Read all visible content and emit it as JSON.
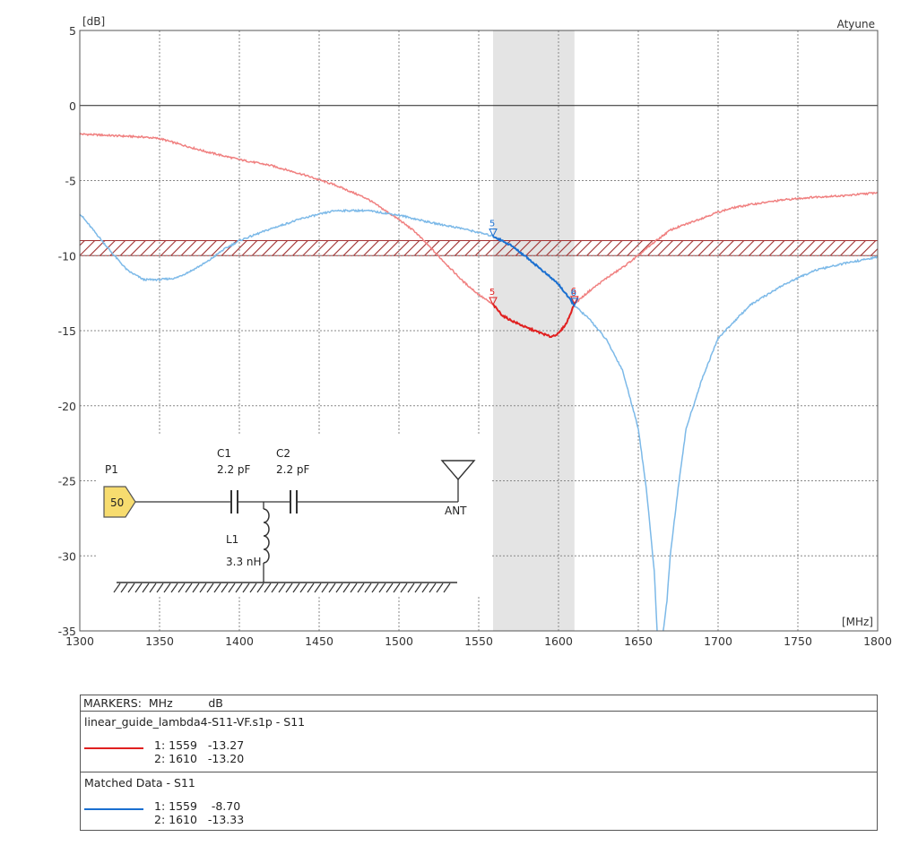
{
  "chart_data": {
    "type": "line",
    "title": "",
    "brand_label": "Atyune",
    "xlabel": "[MHz]",
    "ylabel": "[dB]",
    "xlim": [
      1300,
      1800
    ],
    "ylim": [
      -35,
      5
    ],
    "x_ticks": [
      1300,
      1350,
      1400,
      1450,
      1500,
      1550,
      1600,
      1650,
      1700,
      1750,
      1800
    ],
    "y_ticks": [
      5,
      0,
      -5,
      -10,
      -15,
      -20,
      -25,
      -30,
      -35
    ],
    "grid": true,
    "highlight_band_mhz": [
      1559,
      1610
    ],
    "spec_band_db": [
      -10,
      -9
    ],
    "series": [
      {
        "name": "linear_guide_lambda4-S11-VF.s1p - S11",
        "color": "#f08080",
        "highlight_color": "#e02020",
        "x": [
          1300,
          1320,
          1340,
          1350,
          1360,
          1380,
          1400,
          1420,
          1440,
          1460,
          1480,
          1500,
          1510,
          1520,
          1530,
          1540,
          1550,
          1559,
          1565,
          1570,
          1580,
          1590,
          1595,
          1600,
          1605,
          1610,
          1620,
          1630,
          1640,
          1650,
          1660,
          1670,
          1680,
          1690,
          1700,
          1710,
          1720,
          1740,
          1760,
          1780,
          1800
        ],
        "y": [
          -1.9,
          -2.0,
          -2.1,
          -2.2,
          -2.5,
          -3.1,
          -3.6,
          -4.0,
          -4.6,
          -5.3,
          -6.2,
          -7.6,
          -8.4,
          -9.5,
          -10.6,
          -11.7,
          -12.6,
          -13.27,
          -14.0,
          -14.3,
          -14.8,
          -15.2,
          -15.4,
          -15.2,
          -14.5,
          -13.2,
          -12.3,
          -11.5,
          -10.8,
          -10.0,
          -9.1,
          -8.3,
          -7.9,
          -7.5,
          -7.1,
          -6.8,
          -6.6,
          -6.3,
          -6.1,
          -6.0,
          -5.8
        ]
      },
      {
        "name": "Matched Data - S11",
        "color": "#7cb9e8",
        "highlight_color": "#1a6fd0",
        "x": [
          1300,
          1310,
          1320,
          1330,
          1340,
          1350,
          1360,
          1370,
          1380,
          1390,
          1400,
          1420,
          1440,
          1460,
          1480,
          1500,
          1520,
          1540,
          1559,
          1570,
          1580,
          1590,
          1600,
          1610,
          1620,
          1630,
          1640,
          1650,
          1655,
          1660,
          1662,
          1665,
          1668,
          1670,
          1675,
          1680,
          1690,
          1700,
          1720,
          1740,
          1760,
          1780,
          1800
        ],
        "y": [
          -7.2,
          -8.5,
          -9.8,
          -11.0,
          -11.6,
          -11.6,
          -11.5,
          -11.0,
          -10.4,
          -9.6,
          -9.0,
          -8.2,
          -7.5,
          -7.0,
          -7.0,
          -7.3,
          -7.8,
          -8.2,
          -8.7,
          -9.3,
          -10.1,
          -11.0,
          -11.9,
          -13.33,
          -14.3,
          -15.6,
          -17.6,
          -21.5,
          -25.5,
          -31.0,
          -35.5,
          -35.5,
          -33.0,
          -30.0,
          -25.5,
          -21.5,
          -18.2,
          -15.5,
          -13.3,
          -12.0,
          -11.0,
          -10.5,
          -10.1
        ]
      }
    ],
    "markers": [
      {
        "series": 0,
        "label": "5",
        "x": 1559,
        "y": -13.27
      },
      {
        "series": 0,
        "label": "6",
        "x": 1610,
        "y": -13.2
      },
      {
        "series": 1,
        "label": "5",
        "x": 1559,
        "y": -8.7
      },
      {
        "series": 1,
        "label": "6",
        "x": 1610,
        "y": -13.33
      }
    ]
  },
  "circuit": {
    "port": "P1",
    "port_value": "50",
    "c1_name": "C1",
    "c1_value": "2.2 pF",
    "c2_name": "C2",
    "c2_value": "2.2 pF",
    "l1_name": "L1",
    "l1_value": "3.3 nH",
    "ant_label": "ANT"
  },
  "markers_table": {
    "header": "MARKERS:  MHz          dB",
    "sections": [
      {
        "title": "linear_guide_lambda4-S11-VF.s1p - S11",
        "color": "#e02020",
        "row1": "1: 1559   -13.27",
        "row2": "2: 1610   -13.20"
      },
      {
        "title": "Matched Data - S11",
        "color": "#1a6fd0",
        "row1": "1: 1559    -8.70",
        "row2": "2: 1610   -13.33"
      }
    ]
  }
}
